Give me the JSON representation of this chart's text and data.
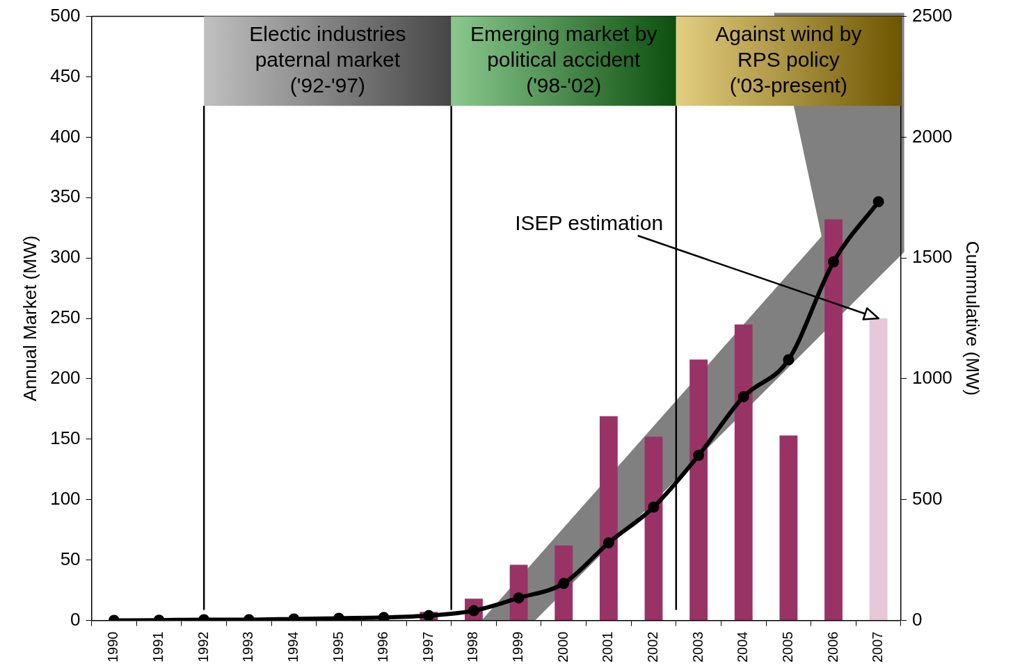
{
  "chart_data": {
    "type": "bar",
    "ylabel": "Annual Market (MW)",
    "y2label": "Cummulative (MW)",
    "x": [
      1990,
      1991,
      1992,
      1993,
      1994,
      1995,
      1996,
      1997,
      1998,
      1999,
      2000,
      2001,
      2002,
      2003,
      2004,
      2005,
      2006,
      2007
    ],
    "xlim": [
      1989.5,
      2007.5
    ],
    "xticks": [
      1990,
      1991,
      1992,
      1993,
      1994,
      1995,
      1996,
      1997,
      1998,
      1999,
      2000,
      2001,
      2002,
      2003,
      2004,
      2005,
      2006,
      2007
    ],
    "ylim": [
      0,
      500
    ],
    "yticks": [
      0,
      50,
      100,
      150,
      200,
      250,
      300,
      350,
      400,
      450,
      500
    ],
    "y2lim": [
      0,
      2500
    ],
    "y2ticks": [
      0,
      500,
      1000,
      1500,
      2000,
      2500
    ],
    "series": [
      {
        "colors": [
          "#993366",
          "#993366",
          "#993366",
          "#993366",
          "#993366",
          "#993366",
          "#993366",
          "#993366",
          "#993366",
          "#993366",
          "#993366",
          "#993366",
          "#993366",
          "#993366",
          "#993366",
          "#993366",
          "#993366",
          "#e6c8d8"
        ],
        "values": [
          null,
          null,
          null,
          null,
          null,
          null,
          null,
          7,
          18,
          46,
          62,
          169,
          152,
          216,
          245,
          153,
          332,
          250
        ]
      },
      {
        "type": "line",
        "axis": "y2",
        "color": "#000000",
        "marker": "circle",
        "values": [
          0,
          1,
          3,
          3,
          6,
          9,
          12,
          20,
          40,
          93,
          153,
          321,
          469,
          683,
          926,
          1079,
          1484,
          1733
        ]
      }
    ],
    "bands": [
      {
        "axis": "x",
        "from": 1992,
        "to": 1997.5,
        "label": "Electic industries\npaternal market\n('92-'97)",
        "color": "#808080"
      },
      {
        "axis": "x",
        "from": 1997.5,
        "to": 2002.5,
        "label": "Emerging market by\npolitical accident\n('98-'02)",
        "color": "#15901a"
      },
      {
        "axis": "x",
        "from": 2002.5,
        "to": 2007.5,
        "label": "Against wind by\nRPS policy\n('03-present)",
        "color": "#c89c00"
      }
    ],
    "ref_lines": [
      {
        "axis": "x",
        "value": 1992
      },
      {
        "axis": "x",
        "value": 1997.5
      },
      {
        "axis": "x",
        "value": 2002.5
      }
    ],
    "annotations": [
      "ISEP estimation"
    ],
    "grid": false,
    "legend": false
  }
}
